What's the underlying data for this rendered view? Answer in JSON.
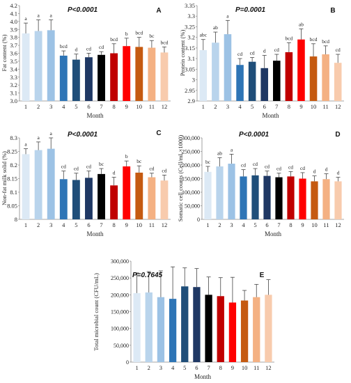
{
  "months": [
    "1",
    "2",
    "3",
    "4",
    "5",
    "6",
    "7",
    "8",
    "9",
    "10",
    "11",
    "12"
  ],
  "colors": [
    "#dce9f5",
    "#b9d4ec",
    "#9cc2e5",
    "#2e75b6",
    "#1f4e79",
    "#1f3864",
    "#000000",
    "#c00000",
    "#ff0000",
    "#c55a11",
    "#f4b183",
    "#f8cbad"
  ],
  "chart_data": [
    {
      "id": "A",
      "type": "bar",
      "panel_label": "A",
      "p_value": "P<0.0001",
      "xlabel": "Month",
      "ylabel": "Fat content (%)",
      "ylim": [
        3.0,
        4.2
      ],
      "yticks": [
        "3.0",
        "3.1",
        "3.2",
        "3.3",
        "3.4",
        "3.5",
        "3.6",
        "3.7",
        "3.8",
        "3.9",
        "4.0",
        "4.1",
        "4.2"
      ],
      "categories": [
        "1",
        "2",
        "3",
        "4",
        "5",
        "6",
        "7",
        "8",
        "9",
        "10",
        "11",
        "12"
      ],
      "values": [
        3.85,
        3.88,
        3.89,
        3.57,
        3.52,
        3.55,
        3.58,
        3.6,
        3.69,
        3.68,
        3.67,
        3.61
      ],
      "errors": [
        0.13,
        0.14,
        0.13,
        0.06,
        0.07,
        0.05,
        0.04,
        0.12,
        0.1,
        0.12,
        0.09,
        0.07
      ],
      "letters": [
        "a",
        "a",
        "a",
        "bcd",
        "d",
        "cd",
        "cd",
        "bcd",
        "b",
        "bcd",
        "bc",
        "bcd"
      ]
    },
    {
      "id": "B",
      "type": "bar",
      "panel_label": "B",
      "p_value": "P=0.0001",
      "xlabel": "Month",
      "ylabel": "Protein content (%)",
      "ylim": [
        2.9,
        3.35
      ],
      "yticks": [
        "2.9",
        "2.95",
        "3",
        "3.05",
        "3.1",
        "3.15",
        "3.2",
        "3.25",
        "3.3",
        "3.35"
      ],
      "categories": [
        "1",
        "2",
        "3",
        "4",
        "5",
        "6",
        "7",
        "8",
        "9",
        "10",
        "11",
        "12"
      ],
      "values": [
        3.14,
        3.175,
        3.215,
        3.07,
        3.085,
        3.055,
        3.09,
        3.13,
        3.19,
        3.11,
        3.12,
        3.08
      ],
      "errors": [
        0.05,
        0.05,
        0.065,
        0.03,
        0.02,
        0.06,
        0.03,
        0.045,
        0.05,
        0.06,
        0.04,
        0.04
      ],
      "letters": [
        "abc",
        "ab",
        "a",
        "cd",
        "cd",
        "d",
        "cd",
        "bcd",
        "ab",
        "bcd",
        "bcd",
        "cd"
      ]
    },
    {
      "id": "C",
      "type": "bar",
      "panel_label": "C",
      "p_value": "P<0.0001",
      "xlabel": "Month",
      "ylabel": "Non-fat milk solid (%)",
      "ylim": [
        8,
        8.3
      ],
      "yticks": [
        "8",
        "8.05",
        "8.1",
        "8.15",
        "8.2",
        "8.25",
        "8.3"
      ],
      "categories": [
        "1",
        "2",
        "3",
        "4",
        "5",
        "6",
        "7",
        "8",
        "9",
        "10",
        "11",
        "12"
      ],
      "values": [
        8.24,
        8.255,
        8.26,
        8.148,
        8.145,
        8.153,
        8.167,
        8.125,
        8.195,
        8.172,
        8.155,
        8.143
      ],
      "errors": [
        0.02,
        0.03,
        0.04,
        0.03,
        0.025,
        0.025,
        0.02,
        0.03,
        0.02,
        0.025,
        0.015,
        0.02
      ],
      "letters": [
        "a",
        "a",
        "a",
        "cd",
        "cd",
        "cd",
        "bc",
        "d",
        "b",
        "bc",
        "cd",
        "cd"
      ]
    },
    {
      "id": "D",
      "type": "bar",
      "panel_label": "D",
      "p_value": "P<0.0001",
      "xlabel": "Month",
      "ylabel": "Somatic cell counts (Cell/mL×1000)",
      "ylim": [
        0,
        300000
      ],
      "yticks": [
        "0",
        "50,000",
        "100,000",
        "150,000",
        "200,000",
        "250,000",
        "300,000"
      ],
      "categories": [
        "1",
        "2",
        "3",
        "4",
        "5",
        "6",
        "7",
        "8",
        "9",
        "10",
        "11",
        "12"
      ],
      "values": [
        175000,
        195000,
        205000,
        158000,
        162000,
        160000,
        155000,
        158000,
        150000,
        140000,
        148000,
        140000
      ],
      "errors": [
        20000,
        32000,
        35000,
        25000,
        25000,
        18000,
        15000,
        18000,
        22000,
        20000,
        20000,
        15000
      ],
      "letters": [
        "bc",
        "ab",
        "a",
        "cd",
        "cd",
        "cd",
        "cd",
        "cd",
        "cd",
        "d",
        "d",
        "d"
      ]
    },
    {
      "id": "E",
      "type": "bar",
      "panel_label": "E",
      "p_value": "P=0.7645",
      "xlabel": "Month",
      "ylabel": "Total microbial count (CFU/mL)",
      "ylim": [
        0,
        300000
      ],
      "yticks": [
        "0",
        "50,000",
        "100,000",
        "150,000",
        "200,000",
        "250,000",
        "300,000"
      ],
      "categories": [
        "1",
        "2",
        "3",
        "4",
        "5",
        "6",
        "7",
        "8",
        "9",
        "10",
        "11",
        "12"
      ],
      "values": [
        205000,
        207000,
        193000,
        188000,
        225000,
        223000,
        200000,
        196000,
        177000,
        183000,
        193000,
        200000
      ],
      "errors": [
        60000,
        62000,
        78000,
        95000,
        55000,
        55000,
        53000,
        55000,
        75000,
        30000,
        38000,
        45000
      ],
      "letters": []
    }
  ]
}
